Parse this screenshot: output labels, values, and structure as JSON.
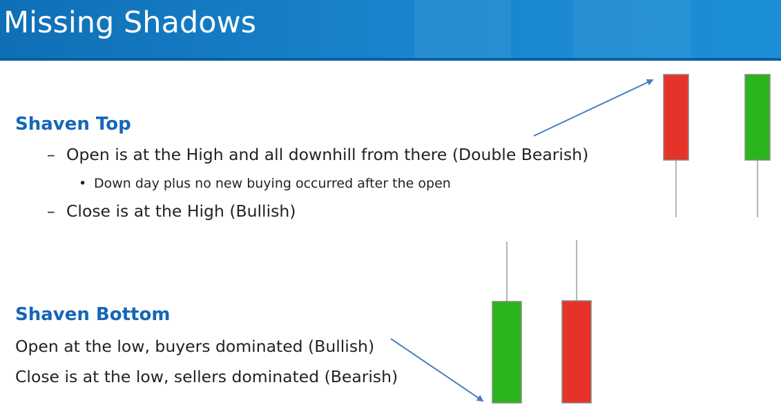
{
  "slide": {
    "title": "Missing Shadows"
  },
  "shaven_top": {
    "heading": "Shaven Top",
    "dash_glyph": "–",
    "bullet_glyph": "•",
    "point_1": "Open is at the High and all downhill from there (Double Bearish)",
    "sub_point_1": "Down day plus no new buying occurred after the open",
    "point_2": "Close is at the High (Bullish)"
  },
  "shaven_bottom": {
    "heading": "Shaven Bottom",
    "line_1": "Open at the low, buyers dominated (Bullish)",
    "line_2": "Close is at the low, sellers dominated (Bearish)"
  },
  "candlesticks": {
    "shaven_top": [
      {
        "color": "red",
        "shadow": "lower"
      },
      {
        "color": "green",
        "shadow": "lower"
      }
    ],
    "shaven_bottom": [
      {
        "color": "green",
        "shadow": "upper"
      },
      {
        "color": "red",
        "shadow": "upper"
      }
    ]
  },
  "colors": {
    "title_bar": "#1a86cf",
    "heading": "#1566b8",
    "body_text": "#222222",
    "bearish": "#e6332a",
    "bullish": "#2bb51d",
    "arrow": "#4a7fc0",
    "wick": "#b5b5b5"
  }
}
